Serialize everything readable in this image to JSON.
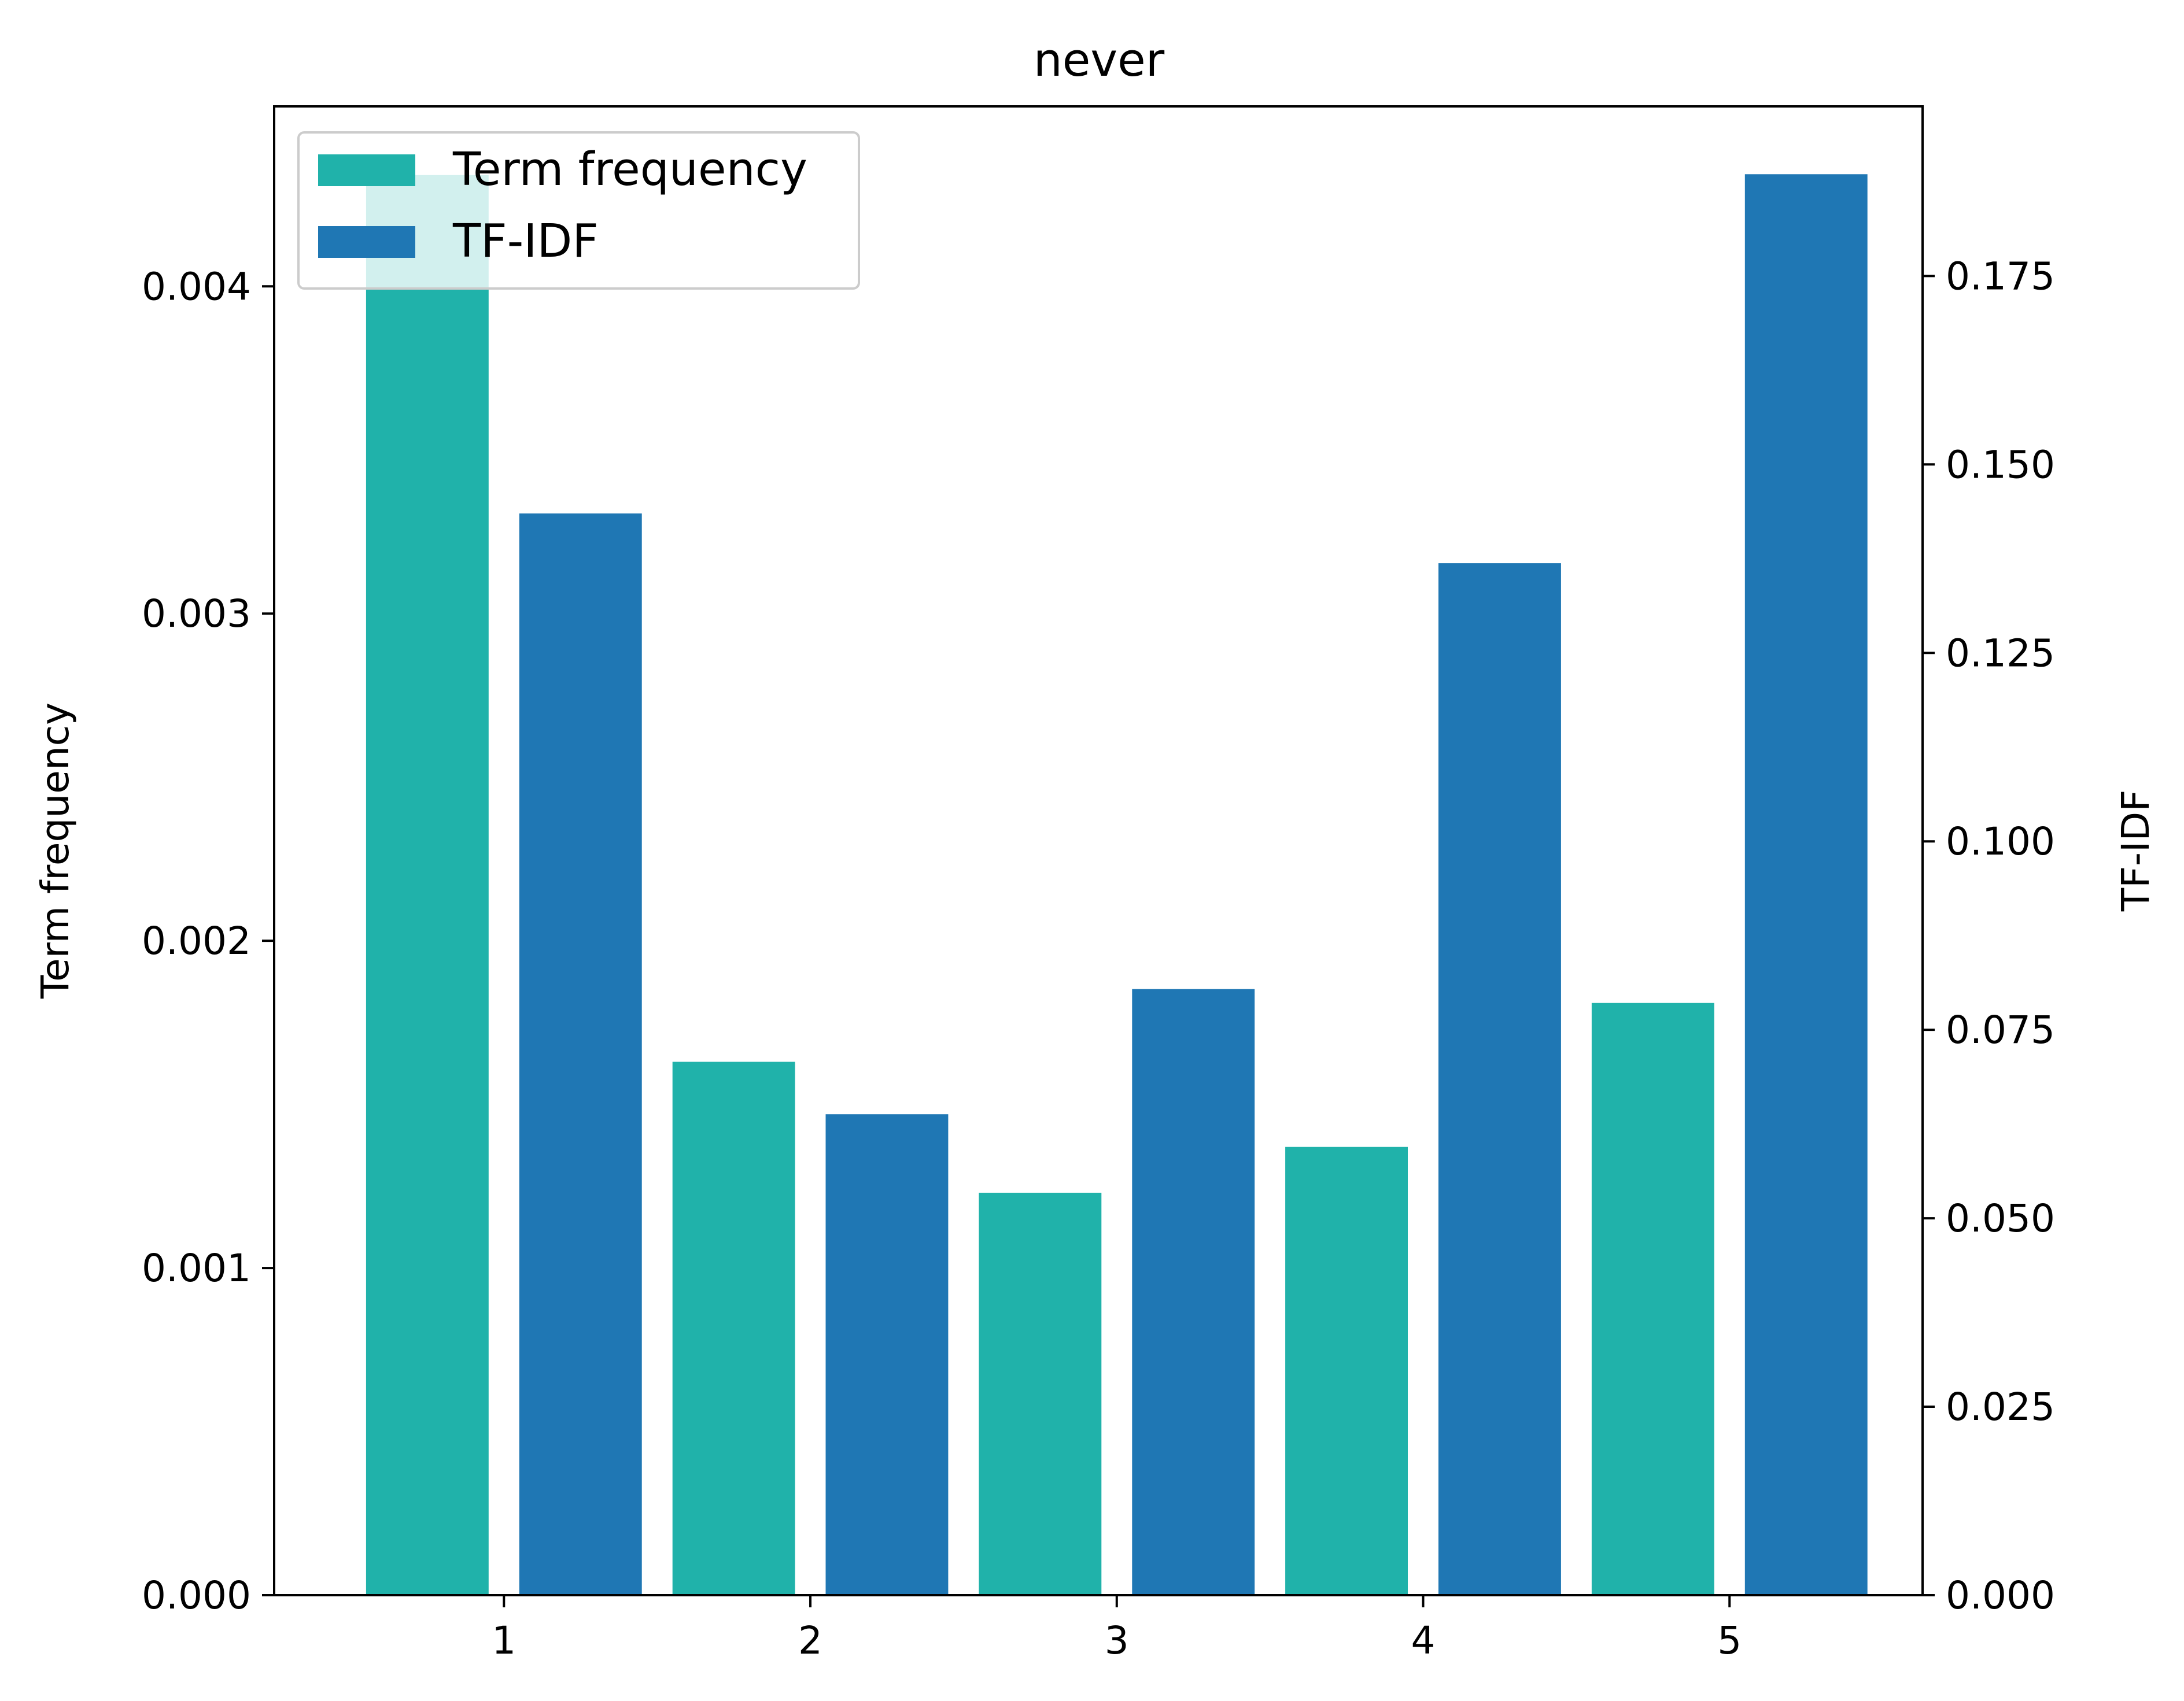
{
  "chart_data": {
    "type": "bar",
    "title": "never",
    "xlabel": "",
    "ylabel": "Term frequency",
    "y2label": "TF-IDF",
    "x_ticks": [
      1,
      2,
      3,
      4,
      5
    ],
    "xlim": [
      0.25,
      5.63
    ],
    "ylim": [
      0,
      0.00455
    ],
    "y2lim": [
      0,
      0.1975
    ],
    "yticks": [
      "0.000",
      "0.001",
      "0.002",
      "0.003",
      "0.004"
    ],
    "y2ticks": [
      "0.000",
      "0.025",
      "0.050",
      "0.075",
      "0.100",
      "0.125",
      "0.150",
      "0.175"
    ],
    "grid": false,
    "legend_position": "upper left",
    "series": [
      {
        "name": "Term frequency",
        "axis": "left",
        "color": "#20b2aa",
        "x": [
          0.75,
          1.75,
          2.75,
          3.75,
          4.75
        ],
        "values": [
          0.00434,
          0.00163,
          0.00123,
          0.00137,
          0.00181
        ]
      },
      {
        "name": "TF-IDF",
        "axis": "right",
        "color": "#1f77b4",
        "x": [
          1.25,
          2.25,
          3.25,
          4.25,
          5.25
        ],
        "values": [
          0.1435,
          0.0638,
          0.0804,
          0.1369,
          0.1885
        ]
      }
    ]
  }
}
